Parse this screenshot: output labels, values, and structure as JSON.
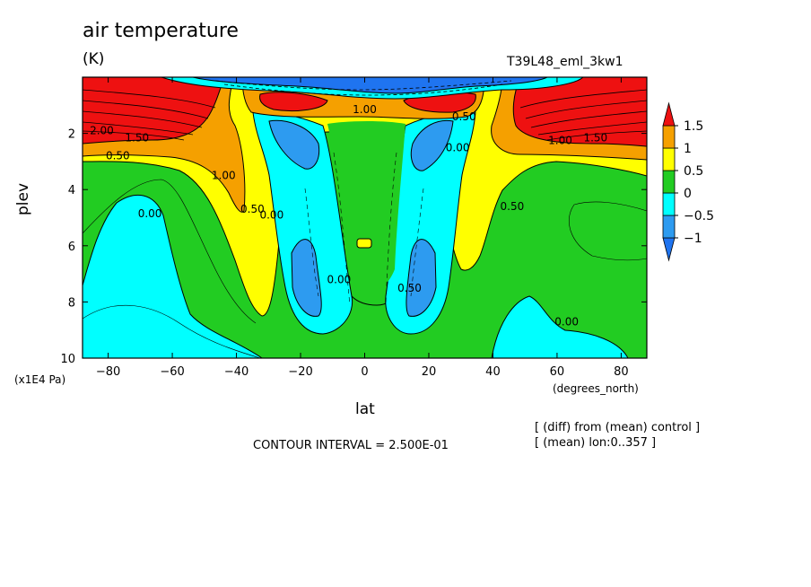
{
  "chart_data": {
    "type": "heatmap",
    "title": "air temperature",
    "units": "(K)",
    "run_label": "T39L48_eml_3kw1",
    "xlabel": "lat",
    "x_unit": "(degrees_north)",
    "ylabel": "plev",
    "y_unit": "(x1E4 Pa)",
    "xlim": [
      -88,
      88
    ],
    "ylim": [
      0,
      10
    ],
    "y_inverted": true,
    "x_ticks": [
      -80,
      -60,
      -40,
      -20,
      0,
      20,
      40,
      60,
      80
    ],
    "y_ticks": [
      2,
      4,
      6,
      8,
      10
    ],
    "contour_interval_text": "CONTOUR INTERVAL = 2.500E-01",
    "notes": [
      "[ (diff) from (mean) control ]",
      "[ (mean) lon:0..357 ]"
    ],
    "colorbar": {
      "ticks": [
        "1.5",
        "1",
        "0.5",
        "0",
        "-0.5",
        "-1"
      ],
      "levels": [
        -1.5,
        -1,
        -0.5,
        0,
        0.5,
        1,
        1.5,
        2
      ],
      "colors": [
        "#1f74f0",
        "#2d9bf0",
        "#00ffff",
        "#22cc22",
        "#ffff00",
        "#f5a000",
        "#ee1111"
      ]
    },
    "contour_labels": [
      {
        "text": "2.00",
        "lat": -82,
        "p": 1.9
      },
      {
        "text": "1.50",
        "lat": -71,
        "p": 2.15
      },
      {
        "text": "0.50",
        "lat": -77,
        "p": 2.8
      },
      {
        "text": "1.00",
        "lat": -44,
        "p": 3.5
      },
      {
        "text": "0.00",
        "lat": -67,
        "p": 4.85
      },
      {
        "text": "0.50",
        "lat": -35,
        "p": 4.7
      },
      {
        "text": "0.00",
        "lat": -29,
        "p": 4.9
      },
      {
        "text": "0.00",
        "lat": -8,
        "p": 7.2
      },
      {
        "text": "1.00",
        "lat": 0,
        "p": 1.15
      },
      {
        "text": "0.50",
        "lat": 14,
        "p": 7.5
      },
      {
        "text": "0.00",
        "lat": 29,
        "p": 2.5
      },
      {
        "text": "0.50",
        "lat": 31,
        "p": 1.4
      },
      {
        "text": "1.00",
        "lat": 61,
        "p": 2.25
      },
      {
        "text": "1.50",
        "lat": 72,
        "p": 2.15
      },
      {
        "text": "0.50",
        "lat": 46,
        "p": 4.6
      },
      {
        "text": "0.00",
        "lat": 63,
        "p": 8.7
      }
    ]
  }
}
